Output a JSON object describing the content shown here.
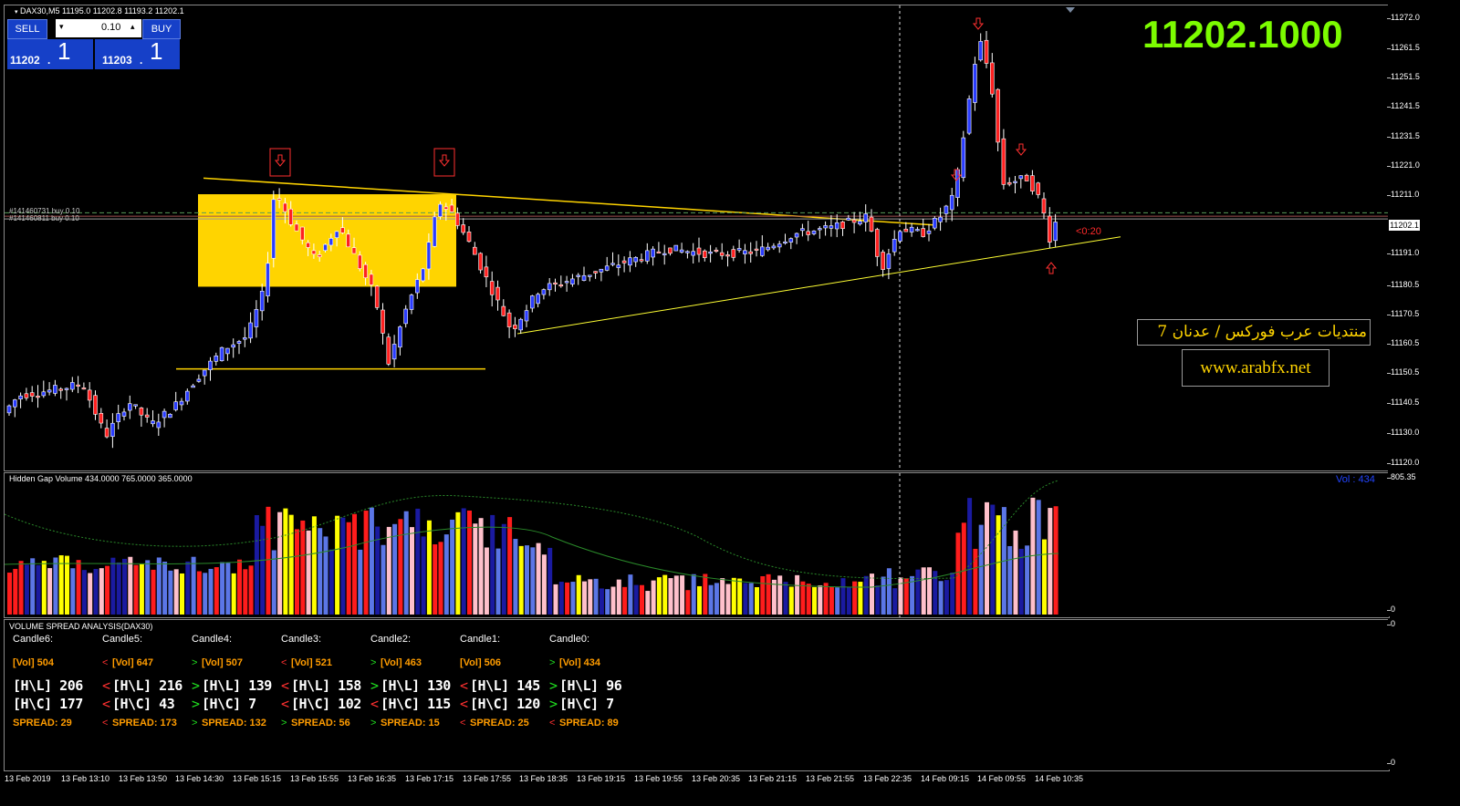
{
  "header": {
    "symbol_line": "DAX30,M5  11195.0 11202.8 11193.2 11202.1"
  },
  "trade_panel": {
    "sell_label": "SELL",
    "buy_label": "BUY",
    "lot_value": "0.10",
    "bid_main": "11202",
    "bid_pip": "1",
    "ask_main": "11203",
    "ask_pip": "1",
    "dot": "."
  },
  "big_price": "11202.1000",
  "orders": [
    "#141460731 buy 0.10",
    "#141460811 buy 0.10"
  ],
  "current_price_tag": "11202.1",
  "countdown": "<0:20",
  "watermark": {
    "forum_text": "منتديات عرب فوركس / عدنان 7",
    "url_text": "www.arabfx.net"
  },
  "price_axis": [
    "11272.0",
    "11261.5",
    "11251.5",
    "11241.5",
    "11231.5",
    "11221.0",
    "11211.0",
    "11191.0",
    "11180.5",
    "11170.5",
    "11160.5",
    "11150.5",
    "11140.5",
    "11130.0",
    "11120.0"
  ],
  "time_axis": [
    "13 Feb 2019",
    "13 Feb 13:10",
    "13 Feb 13:50",
    "13 Feb 14:30",
    "13 Feb 15:15",
    "13 Feb 15:55",
    "13 Feb 16:35",
    "13 Feb 17:15",
    "13 Feb 17:55",
    "13 Feb 18:35",
    "13 Feb 19:15",
    "13 Feb 19:55",
    "13 Feb 20:35",
    "13 Feb 21:15",
    "13 Feb 21:55",
    "13 Feb 22:35",
    "14 Feb 09:15",
    "14 Feb 09:55",
    "14 Feb 10:35"
  ],
  "volume_indicator": {
    "title": "Hidden Gap Volume 434.0000 765.0000 365.0000",
    "readout": "Vol : 434",
    "axis_top": "805.35",
    "axis_zero": "0"
  },
  "vsa": {
    "title": "VOLUME SPREAD ANALYSIS(DAX30)",
    "axis_top": "0",
    "axis_zero": "0",
    "candles": [
      {
        "label": "Candle6:",
        "vol_dir": "",
        "vol": "[Vol]  504",
        "hl_dir": "",
        "hl": "[H\\L] 206",
        "hc_dir": "",
        "hc": "[H\\C] 177",
        "sp_dir": "",
        "sp": "SPREAD:  29"
      },
      {
        "label": "Candle5:",
        "vol_dir": "<",
        "vol": "[Vol]  647",
        "hl_dir": "<",
        "hl": "[H\\L] 216",
        "hc_dir": "<",
        "hc": "[H\\C] 43",
        "sp_dir": "<",
        "sp": "SPREAD:  173"
      },
      {
        "label": "Candle4:",
        "vol_dir": ">",
        "vol": "[Vol]  507",
        "hl_dir": ">",
        "hl": "[H\\L] 139",
        "hc_dir": ">",
        "hc": "[H\\C] 7",
        "sp_dir": ">",
        "sp": "SPREAD:  132"
      },
      {
        "label": "Candle3:",
        "vol_dir": "<",
        "vol": "[Vol]  521",
        "hl_dir": "<",
        "hl": "[H\\L] 158",
        "hc_dir": "<",
        "hc": "[H\\C] 102",
        "sp_dir": ">",
        "sp": "SPREAD:  56"
      },
      {
        "label": "Candle2:",
        "vol_dir": ">",
        "vol": "[Vol]  463",
        "hl_dir": ">",
        "hl": "[H\\L] 130",
        "hc_dir": "<",
        "hc": "[H\\C] 115",
        "sp_dir": ">",
        "sp": "SPREAD:  15"
      },
      {
        "label": "Candle1:",
        "vol_dir": "",
        "vol": "[Vol]  506",
        "hl_dir": "<",
        "hl": "[H\\L] 145",
        "hc_dir": "<",
        "hc": "[H\\C] 120",
        "sp_dir": "<",
        "sp": "SPREAD:  25"
      },
      {
        "label": "Candle0:",
        "vol_dir": ">",
        "vol": "[Vol]  434",
        "hl_dir": ">",
        "hl": "[H\\L] 96",
        "hc_dir": ">",
        "hc": "[H\\C] 7",
        "sp_dir": "<",
        "sp": "SPREAD:  89"
      }
    ]
  },
  "colors": {
    "bull": "#2a3cff",
    "bear": "#ff2020",
    "zone": "#ffd400",
    "big_price": "#7cfc00",
    "vol_blue": "#5b76e6",
    "vol_red": "#ff1c1c",
    "vol_pink": "#ffc0cb",
    "vol_yellow": "#ffff00",
    "vol_navy": "#1a1aa0",
    "up_arrow": "#20e020",
    "down_arrow": "#ff3030"
  }
}
